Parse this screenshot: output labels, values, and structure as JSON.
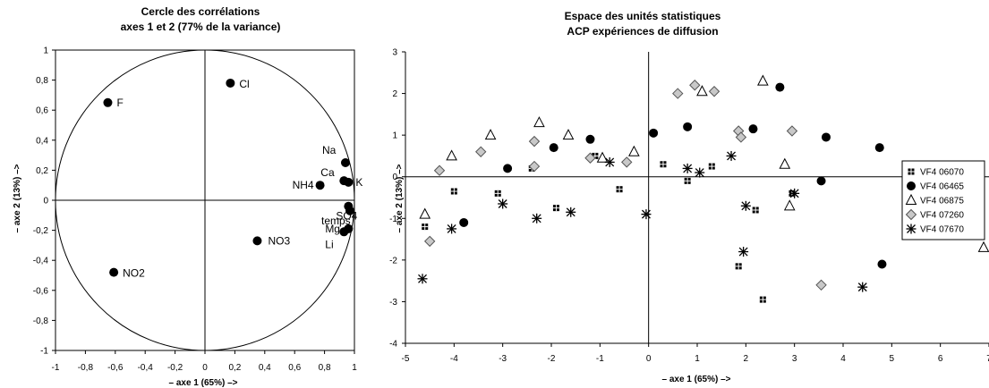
{
  "chart_data": [
    {
      "type": "scatter",
      "title_line1": "Cercle des corrélations",
      "title_line2": "axes  1 et  2 (77% de la variance)",
      "xlabel": "– axe 1 (65%) –>",
      "ylabel": "– axe 2 (13%) –>",
      "xlim": [
        -1,
        1
      ],
      "ylim": [
        -1,
        1
      ],
      "xticks": [
        -1,
        -0.8,
        -0.6,
        -0.4,
        -0.2,
        0,
        0.2,
        0.4,
        0.6,
        0.8,
        1
      ],
      "yticks": [
        -1,
        -0.8,
        -0.6,
        -0.4,
        -0.2,
        0,
        0.2,
        0.4,
        0.6,
        0.8,
        1
      ],
      "xtick_labels": [
        "-1",
        "-0,8",
        "-0,6",
        "-0,4",
        "-0,2",
        "0",
        "0,2",
        "0,4",
        "0,6",
        "0,8",
        "1"
      ],
      "ytick_labels": [
        "-1",
        "-0,8",
        "-0,6",
        "-0,4",
        "-0,2",
        "0",
        "0,2",
        "0,4",
        "0,6",
        "0,8",
        "1"
      ],
      "unit_circle": true,
      "points": [
        {
          "label": "Cl",
          "x": 0.17,
          "y": 0.78
        },
        {
          "label": "F",
          "x": -0.65,
          "y": 0.65
        },
        {
          "label": "Na",
          "x": 0.94,
          "y": 0.25
        },
        {
          "label": "Ca",
          "x": 0.93,
          "y": 0.13
        },
        {
          "label": "K",
          "x": 0.96,
          "y": 0.12
        },
        {
          "label": "NH4",
          "x": 0.77,
          "y": 0.1
        },
        {
          "label": "SO4",
          "x": 0.96,
          "y": -0.04
        },
        {
          "label": "temps",
          "x": 0.97,
          "y": -0.07
        },
        {
          "label": "Mg",
          "x": 0.96,
          "y": -0.19
        },
        {
          "label": "Li",
          "x": 0.93,
          "y": -0.21
        },
        {
          "label": "NO3",
          "x": 0.35,
          "y": -0.27
        },
        {
          "label": "NO2",
          "x": -0.61,
          "y": -0.48
        }
      ]
    },
    {
      "type": "scatter",
      "title_line1": "Espace des unités statistiques",
      "title_line2": "ACP expériences de diffusion",
      "xlabel": "– axe 1 (65%) –>",
      "ylabel": "– axe 2 (13%) –>",
      "xlim": [
        -5,
        7
      ],
      "ylim": [
        -4,
        3
      ],
      "xticks": [
        -5,
        -4,
        -3,
        -2,
        -1,
        0,
        1,
        2,
        3,
        4,
        5,
        6,
        7
      ],
      "yticks": [
        -4,
        -3,
        -2,
        -1,
        0,
        1,
        2,
        3
      ],
      "legend_position": "right",
      "series": [
        {
          "name": "VF4 06070",
          "marker": "square-cross",
          "points": [
            [
              -4.6,
              -1.2
            ],
            [
              -4.0,
              -0.35
            ],
            [
              -3.1,
              -0.4
            ],
            [
              -2.4,
              0.2
            ],
            [
              -1.9,
              -0.75
            ],
            [
              -1.1,
              0.5
            ],
            [
              -0.6,
              -0.3
            ],
            [
              0.3,
              0.3
            ],
            [
              0.8,
              -0.1
            ],
            [
              1.3,
              0.25
            ],
            [
              2.2,
              -0.8
            ],
            [
              2.35,
              -2.95
            ],
            [
              1.85,
              -2.15
            ],
            [
              2.95,
              -0.4
            ]
          ]
        },
        {
          "name": "VF4 06465",
          "marker": "circle",
          "points": [
            [
              -3.8,
              -1.1
            ],
            [
              -2.9,
              0.2
            ],
            [
              -1.95,
              0.7
            ],
            [
              -1.2,
              0.9
            ],
            [
              0.1,
              1.05
            ],
            [
              0.8,
              1.2
            ],
            [
              2.15,
              1.15
            ],
            [
              2.7,
              2.15
            ],
            [
              3.55,
              -0.1
            ],
            [
              3.65,
              0.95
            ],
            [
              4.75,
              0.7
            ],
            [
              4.8,
              -2.1
            ]
          ]
        },
        {
          "name": "VF4 06875",
          "marker": "triangle",
          "points": [
            [
              -4.6,
              -0.9
            ],
            [
              -4.05,
              0.5
            ],
            [
              -3.25,
              1.0
            ],
            [
              -2.25,
              1.3
            ],
            [
              -1.65,
              1.0
            ],
            [
              -0.95,
              0.45
            ],
            [
              -0.3,
              0.6
            ],
            [
              1.1,
              2.05
            ],
            [
              2.35,
              2.3
            ],
            [
              2.8,
              0.3
            ],
            [
              2.9,
              -0.7
            ],
            [
              6.95,
              -1.7
            ]
          ]
        },
        {
          "name": "VF4 07260",
          "marker": "diamond",
          "points": [
            [
              -4.5,
              -1.55
            ],
            [
              -4.3,
              0.15
            ],
            [
              -3.45,
              0.6
            ],
            [
              -2.35,
              0.85
            ],
            [
              -2.35,
              0.25
            ],
            [
              -1.2,
              0.45
            ],
            [
              -0.45,
              0.35
            ],
            [
              0.6,
              2.0
            ],
            [
              0.95,
              2.2
            ],
            [
              1.35,
              2.05
            ],
            [
              1.85,
              1.1
            ],
            [
              1.9,
              0.95
            ],
            [
              2.95,
              1.1
            ],
            [
              3.55,
              -2.6
            ]
          ]
        },
        {
          "name": "VF4 07670",
          "marker": "asterisk",
          "points": [
            [
              -4.65,
              -2.45
            ],
            [
              -4.05,
              -1.25
            ],
            [
              -3.0,
              -0.65
            ],
            [
              -2.3,
              -1.0
            ],
            [
              -1.6,
              -0.85
            ],
            [
              -0.8,
              0.35
            ],
            [
              -0.05,
              -0.9
            ],
            [
              0.8,
              0.2
            ],
            [
              1.05,
              0.1
            ],
            [
              1.7,
              0.5
            ],
            [
              1.95,
              -1.8
            ],
            [
              2.0,
              -0.7
            ],
            [
              3.0,
              -0.4
            ],
            [
              4.4,
              -2.65
            ]
          ]
        }
      ]
    }
  ]
}
